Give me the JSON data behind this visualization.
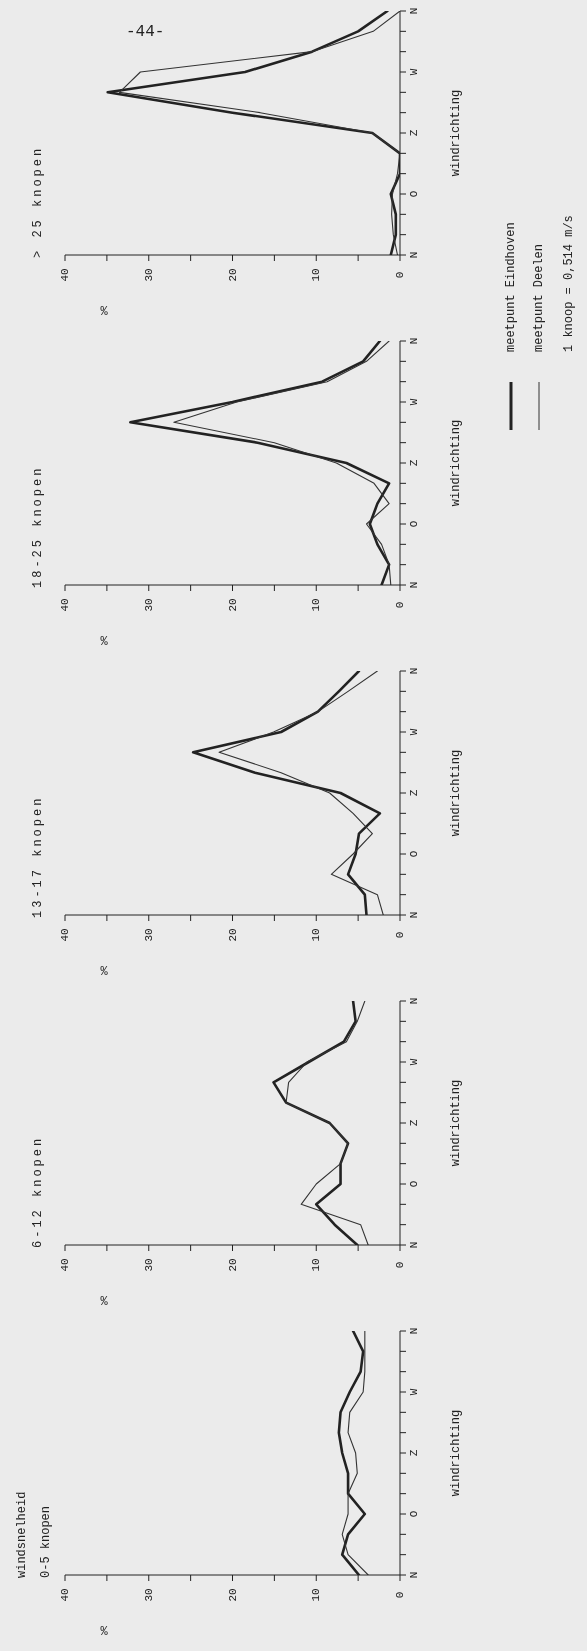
{
  "chart_data": [
    {
      "type": "line",
      "orientation": "horizontal",
      "title": "windsnelheid",
      "subtitle": "0-5 knopen",
      "xlabel": "%",
      "ylabel": "windrichting",
      "categories": [
        "N",
        null,
        null,
        "W",
        null,
        null,
        "Z",
        null,
        null,
        "O",
        null,
        null,
        "N"
      ],
      "xlim": [
        40,
        0
      ],
      "xticks": [
        40,
        {
          "value": 35,
          "label": null
        },
        30,
        {
          "value": 25,
          "label": null
        },
        20,
        {
          "value": 15,
          "label": null
        },
        10,
        {
          "value": 5,
          "label": null
        },
        0
      ],
      "series": [
        {
          "color": "#222222",
          "values": [
            5.6,
            4.4,
            4.7,
            6,
            7.1,
            7.3,
            6.9,
            6.2,
            6.2,
            4.2,
            6.2,
            6.9,
            4.9
          ]
        },
        {
          "color": "#333333",
          "values": [
            4.2,
            4.2,
            4.2,
            4.4,
            6,
            6.2,
            5.3,
            5.1,
            6.2,
            6.2,
            6.9,
            6.2,
            3.8
          ]
        }
      ]
    },
    {
      "type": "line",
      "orientation": "horizontal",
      "title": "6-12 knopen",
      "xlabel": "%",
      "ylabel": "windrichting",
      "categories": [
        "N",
        null,
        null,
        "W",
        null,
        null,
        "Z",
        null,
        null,
        "O",
        null,
        null,
        "N"
      ],
      "xlim": [
        40,
        0
      ],
      "xticks": [
        40,
        {
          "value": 35,
          "label": null
        },
        30,
        {
          "value": 25,
          "label": null
        },
        20,
        {
          "value": 15,
          "label": null
        },
        10,
        {
          "value": 5,
          "label": null
        },
        0
      ],
      "series": [
        {
          "color": "#222222",
          "values": [
            5.6,
            5.3,
            6.7,
            10.9,
            15.1,
            13.6,
            8.4,
            6.2,
            7.1,
            7.1,
            10,
            7.8,
            5.1
          ]
        },
        {
          "color": "#333333",
          "values": [
            4.2,
            5.1,
            6.4,
            11.1,
            13.3,
            13.6,
            8.4,
            6.2,
            7.1,
            10,
            11.8,
            4.7,
            3.8
          ]
        }
      ]
    },
    {
      "type": "line",
      "orientation": "horizontal",
      "title": "13-17 knopen",
      "xlabel": "%",
      "ylabel": "windrichting",
      "categories": [
        "N",
        null,
        null,
        "W",
        null,
        null,
        "Z",
        null,
        null,
        "O",
        null,
        null,
        "N"
      ],
      "xlim": [
        40,
        0
      ],
      "xticks": [
        40,
        {
          "value": 35,
          "label": null
        },
        30,
        {
          "value": 25,
          "label": null
        },
        20,
        {
          "value": 15,
          "label": null
        },
        10,
        {
          "value": 5,
          "label": null
        },
        0
      ],
      "series": [
        {
          "color": "#222222",
          "values": [
            4.9,
            7.3,
            9.8,
            14.2,
            24.7,
            17.3,
            7.1,
            2.4,
            4.9,
            5.3,
            6.2,
            4.2,
            4
          ]
        },
        {
          "color": "#333333",
          "values": [
            2.7,
            6.2,
            9.8,
            15.1,
            21.6,
            14.2,
            8.4,
            5.6,
            3.3,
            5.6,
            8.2,
            2.7,
            2
          ]
        }
      ]
    },
    {
      "type": "line",
      "orientation": "horizontal",
      "title": "18-25 knopen",
      "xlabel": "%",
      "ylabel": "windrichting",
      "categories": [
        "N",
        null,
        null,
        "W",
        null,
        null,
        "Z",
        null,
        null,
        "O",
        null,
        null,
        "N"
      ],
      "xlim": [
        40,
        0
      ],
      "xticks": [
        40,
        {
          "value": 35,
          "label": null
        },
        30,
        {
          "value": 25,
          "label": null
        },
        20,
        {
          "value": 15,
          "label": null
        },
        10,
        {
          "value": 5,
          "label": null
        },
        0
      ],
      "legend": "right",
      "annotations": [
        "1 knoop = 0,514 m/s"
      ],
      "series": [
        {
          "name": "meetpunt Eindhoven",
          "color": "#222222",
          "values": [
            2.4,
            4.4,
            9.3,
            20,
            32.2,
            17,
            6.4,
            1.3,
            2.7,
            3.6,
            2.7,
            1.3,
            2.2
          ]
        },
        {
          "name": "meetpunt Deelen",
          "color": "#333333",
          "values": [
            1.3,
            4,
            8.7,
            19.5,
            27,
            15,
            7.6,
            3.1,
            1.3,
            4,
            2.2,
            1.3,
            1.1
          ]
        }
      ]
    },
    {
      "type": "line",
      "orientation": "horizontal",
      "title": "> 25 knopen",
      "xlabel": "%",
      "ylabel": "windrichting",
      "categories": [
        "N",
        null,
        null,
        "W",
        null,
        null,
        "Z",
        null,
        null,
        "O",
        null,
        null,
        "N"
      ],
      "xlim": [
        40,
        0
      ],
      "xticks": [
        40,
        {
          "value": 35,
          "label": null
        },
        30,
        {
          "value": 25,
          "label": null
        },
        20,
        {
          "value": 15,
          "label": null
        },
        10,
        {
          "value": 5,
          "label": null
        },
        0
      ],
      "annotations": [
        "-44-"
      ],
      "series": [
        {
          "color": "#222222",
          "values": [
            1.5,
            5,
            10.5,
            18.5,
            34.9,
            20,
            3.3,
            0,
            0,
            1.1,
            0.5,
            0.5,
            1.1
          ]
        },
        {
          "color": "#333333",
          "values": [
            0,
            3.2,
            10.5,
            31,
            33.5,
            16.7,
            3.3,
            0,
            0.3,
            0.9,
            1,
            0.8,
            0.3
          ]
        }
      ]
    }
  ]
}
